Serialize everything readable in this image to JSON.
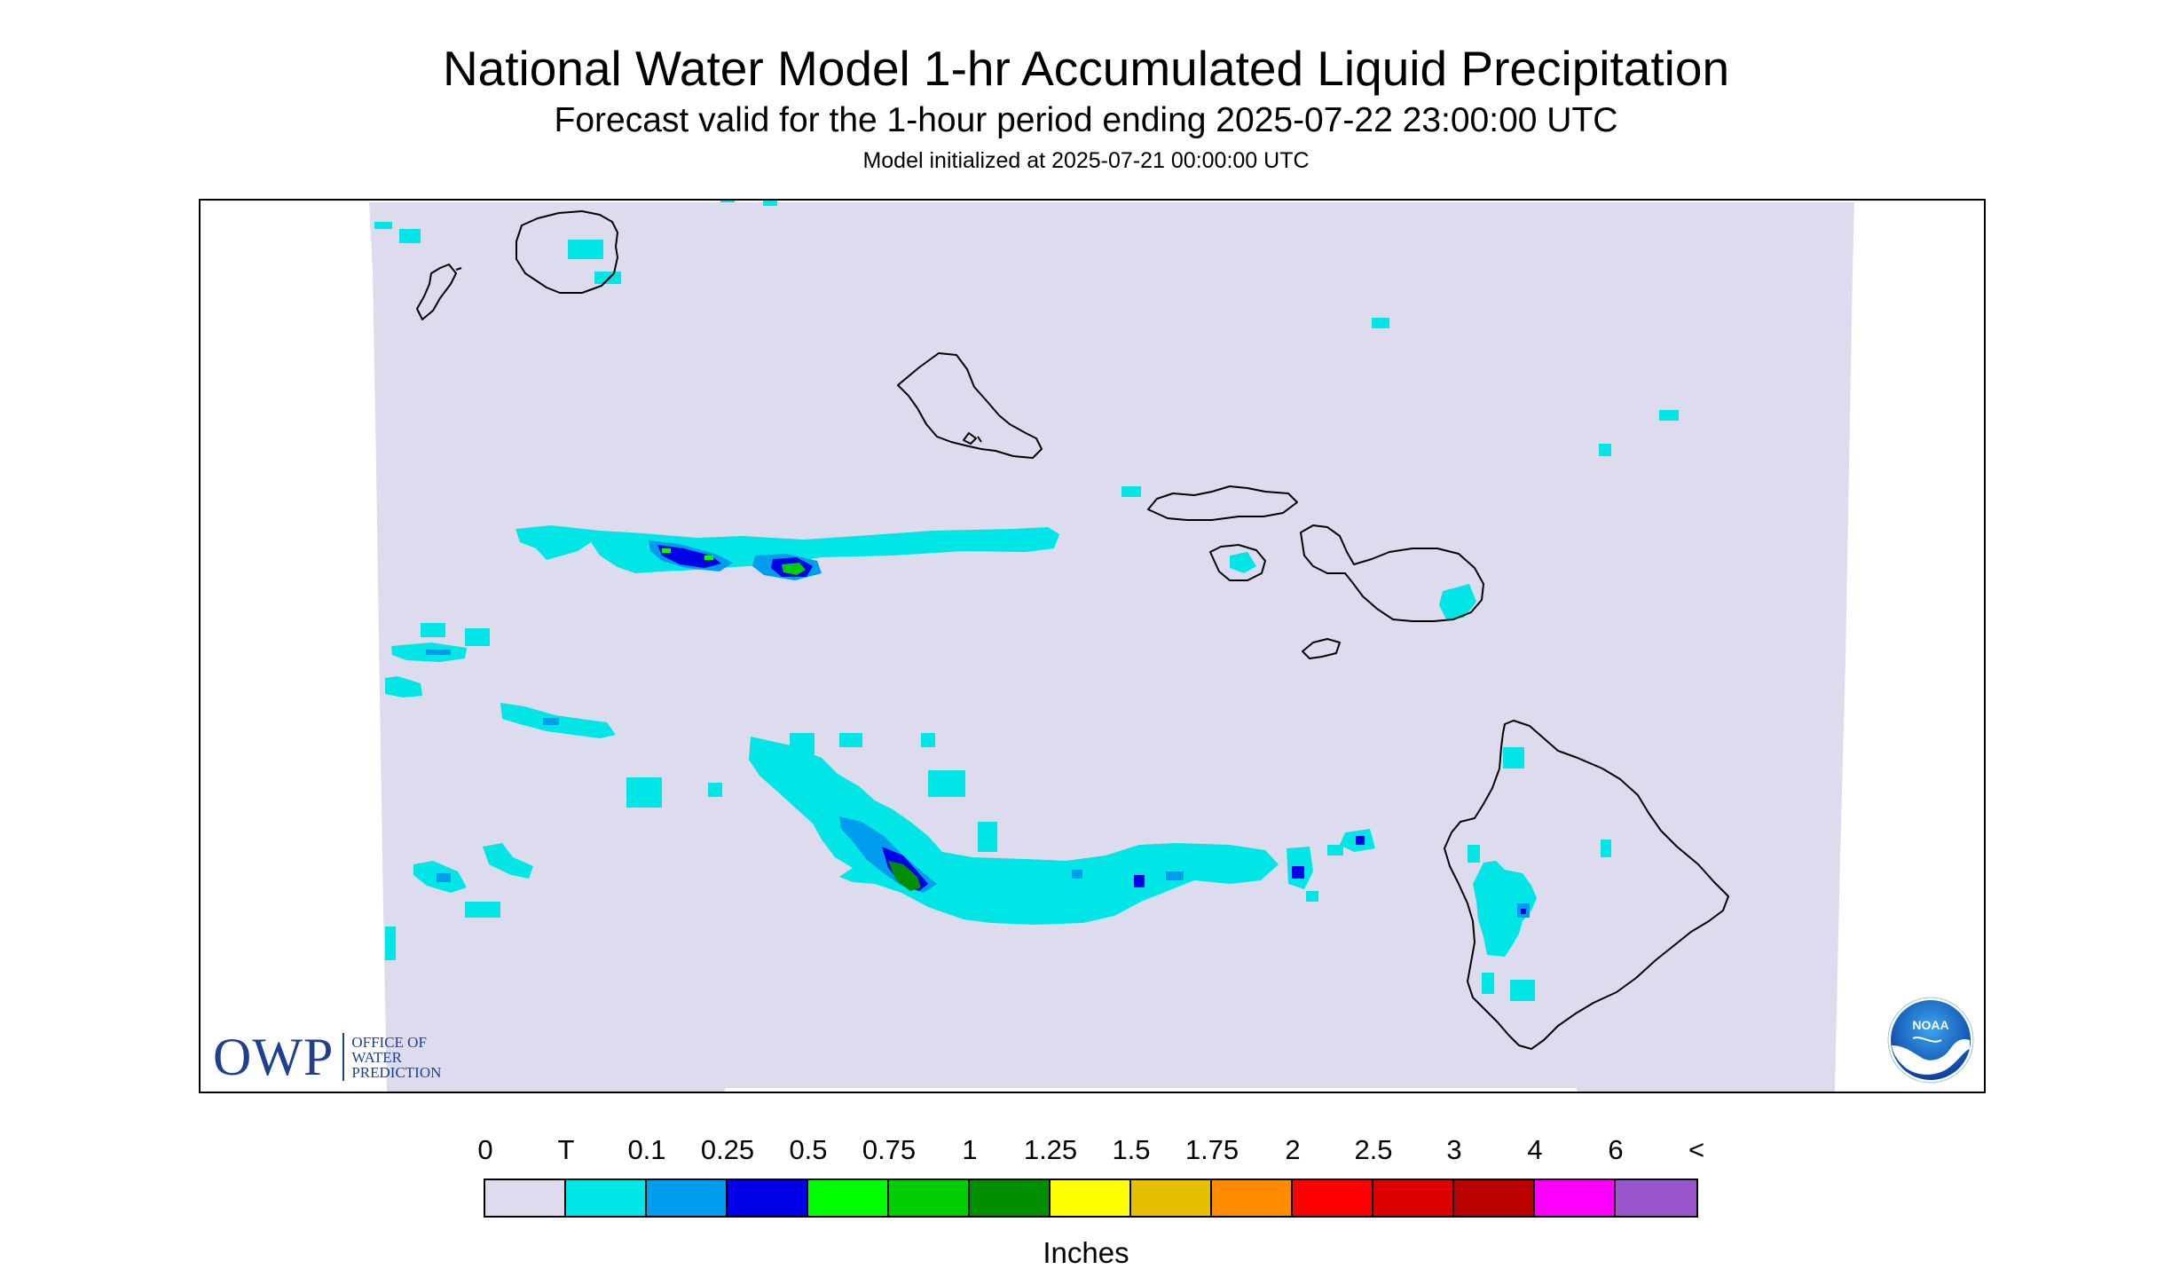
{
  "header": {
    "title": "National Water Model 1-hr Accumulated Liquid Precipitation",
    "subtitle": "Forecast valid for the 1-hour period ending 2025-07-22 23:00:00 UTC",
    "init": "Model initialized at 2025-07-21 00:00:00 UTC"
  },
  "logos": {
    "owp_big": "OWP",
    "owp_line1": "OFFICE OF",
    "owp_line2": "WATER",
    "owp_line3": "PREDICTION",
    "noaa": "NOAA"
  },
  "legend": {
    "labels": [
      "0",
      "T",
      "0.1",
      "0.25",
      "0.5",
      "0.75",
      "1",
      "1.25",
      "1.5",
      "1.75",
      "2",
      "2.5",
      "3",
      "4",
      "6",
      "<"
    ],
    "colors": [
      "#dcdcee",
      "#00e5e5",
      "#009cee",
      "#0000e8",
      "#00ff00",
      "#00cc00",
      "#008f00",
      "#ffff00",
      "#e6bf00",
      "#ff8c00",
      "#ff0000",
      "#dd0000",
      "#bb0000",
      "#ff00ff",
      "#9955cc"
    ],
    "units": "Inches"
  },
  "map": {
    "region": "Hawaiian Islands",
    "islands": [
      "Niihau",
      "Kauai",
      "Oahu",
      "Molokai",
      "Lanai",
      "Maui",
      "Kahoolawe",
      "Hawaii"
    ],
    "background_color": "#dcdcee"
  }
}
